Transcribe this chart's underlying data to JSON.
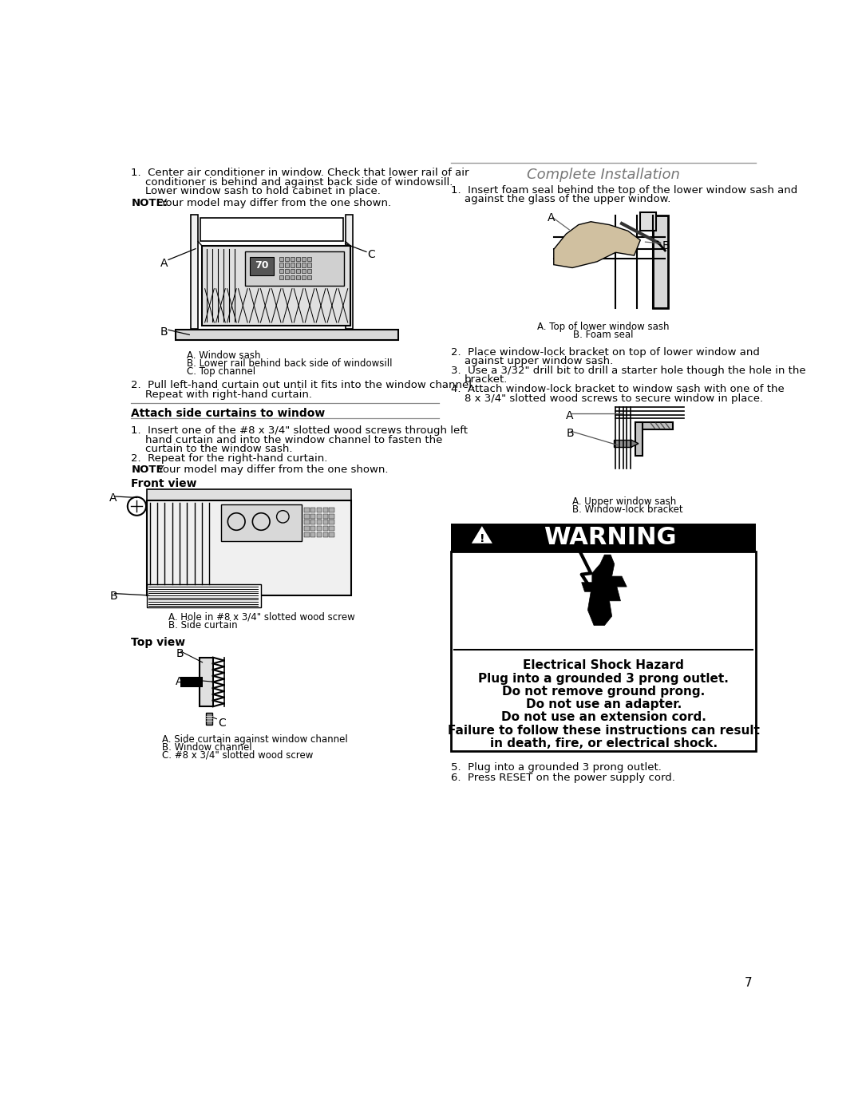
{
  "page_bg": "#ffffff",
  "page_number": "7",
  "left_col": {
    "step1": [
      "1.  Center air conditioner in window. Check that lower rail of air",
      "conditioner is behind and against back side of windowsill.",
      "Lower window sash to hold cabinet in place."
    ],
    "note1_bold": "NOTE:",
    "note1_rest": " Your model may differ from the one shown.",
    "diag1_sublabels": [
      "A. Window sash",
      "B. Lower rail behind back side of windowsill",
      "C. Top channel"
    ],
    "step2": [
      "2.  Pull left-hand curtain out until it fits into the window channel.",
      "Repeat with right-hand curtain."
    ],
    "section_header": "Attach side curtains to window",
    "attach1": [
      "1.  Insert one of the #8 x 3/4\" slotted wood screws through left",
      "hand curtain and into the window channel to fasten the",
      "curtain to the window sash."
    ],
    "attach2": "2.  Repeat for the right-hand curtain.",
    "note2_bold": "NOTE",
    "note2_rest": ": Your model may differ from the one shown.",
    "front_view": "Front view",
    "front_sublabels": [
      "A. Hole in #8 x 3/4\" slotted wood screw",
      "B. Side curtain"
    ],
    "top_view": "Top view",
    "top_sublabels": [
      "A. Side curtain against window channel",
      "B. Window channel",
      "C. #8 x 3/4\" slotted wood screw"
    ]
  },
  "right_col": {
    "title": "Complete Installation",
    "step1": [
      "1.  Insert foam seal behind the top of the lower window sash and",
      "against the glass of the upper window."
    ],
    "diag1_sublabels": [
      "A. Top of lower window sash",
      "B. Foam seal"
    ],
    "steps24": [
      "2.  Place window-lock bracket on top of lower window and",
      "against upper window sash.",
      "3.  Use a 3/32\" drill bit to drill a starter hole though the hole in the",
      "bracket.",
      "4.  Attach window-lock bracket to window sash with one of the",
      "8 x 3/4\" slotted wood screws to secure window in place."
    ],
    "diag2_sublabels": [
      "A. Upper window sash",
      "B. Window-lock bracket"
    ],
    "warn_header": "WARNING",
    "warn_lines": [
      "Electrical Shock Hazard",
      "Plug into a grounded 3 prong outlet.",
      "Do not remove ground prong.",
      "Do not use an adapter.",
      "Do not use an extension cord.",
      "Failure to follow these instructions can result",
      "in death, fire, or electrical shock."
    ],
    "steps56": [
      "5.  Plug into a grounded 3 prong outlet.",
      "6.  Press RESET on the power supply cord."
    ]
  }
}
